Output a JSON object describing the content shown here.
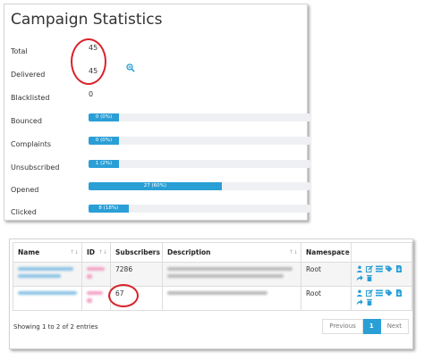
{
  "stats": {
    "title": "Campaign Statistics",
    "rows": [
      {
        "label": "Total",
        "value": "45"
      },
      {
        "label": "Delivered",
        "value": "45"
      },
      {
        "label": "Blacklisted",
        "value": "0"
      },
      {
        "label": "Bounced",
        "bar_label": "0 (0%)",
        "percent": 0
      },
      {
        "label": "Complaints",
        "bar_label": "0 (0%)",
        "percent": 0
      },
      {
        "label": "Unsubscribed",
        "bar_label": "1 (2%)",
        "percent": 2
      },
      {
        "label": "Opened",
        "bar_label": "27 (60%)",
        "percent": 60
      },
      {
        "label": "Clicked",
        "bar_label": "8 (18%)",
        "percent": 18
      }
    ]
  },
  "table": {
    "headers": [
      "Name",
      "ID",
      "Subscribers",
      "Description",
      "Namespace",
      ""
    ],
    "rows": [
      {
        "subscribers": "7286",
        "namespace": "Root"
      },
      {
        "subscribers": "67",
        "namespace": "Root"
      }
    ],
    "info": "Showing 1 to 2 of 2 entries",
    "pagination": {
      "previous": "Previous",
      "current": "1",
      "next": "Next"
    }
  },
  "colors": {
    "accent": "#2a9fd6",
    "annotation": "#d8232a"
  },
  "icons": [
    "zoom-in-icon",
    "user-icon",
    "edit-icon",
    "list-icon",
    "tags-icon",
    "import-icon",
    "share-icon",
    "trash-icon"
  ]
}
